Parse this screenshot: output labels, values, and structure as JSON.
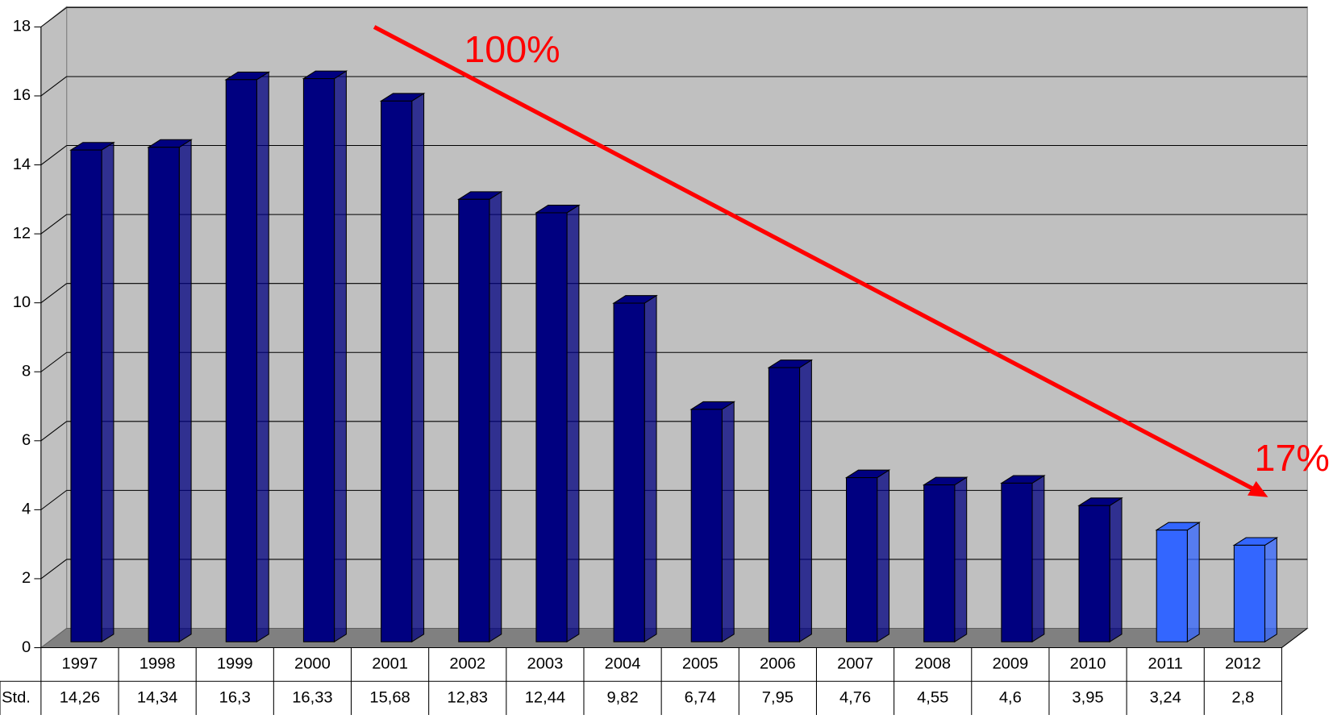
{
  "chart_data": {
    "type": "bar",
    "categories": [
      "1997",
      "1998",
      "1999",
      "2000",
      "2001",
      "2002",
      "2003",
      "2004",
      "2005",
      "2006",
      "2007",
      "2008",
      "2009",
      "2010",
      "2011",
      "2012"
    ],
    "series": [
      {
        "name": "Std.",
        "values": [
          14.26,
          14.34,
          16.3,
          16.33,
          15.68,
          12.83,
          12.44,
          9.82,
          6.74,
          7.95,
          4.76,
          4.55,
          4.6,
          3.95,
          3.24,
          2.8
        ],
        "value_labels": [
          "14,26",
          "14,34",
          "16,3",
          "16,33",
          "15,68",
          "12,83",
          "12,44",
          "9,82",
          "6,74",
          "7,95",
          "4,76",
          "4,55",
          "4,6",
          "3,95",
          "3,24",
          "2,8"
        ],
        "colors": [
          "#000080",
          "#000080",
          "#000080",
          "#000080",
          "#000080",
          "#000080",
          "#000080",
          "#000080",
          "#000080",
          "#000080",
          "#000080",
          "#000080",
          "#000080",
          "#000080",
          "#3366ff",
          "#3366ff"
        ]
      }
    ],
    "ylim": [
      0,
      18
    ],
    "yticks": [
      0,
      2,
      4,
      6,
      8,
      10,
      12,
      14,
      16,
      18
    ],
    "grid": true,
    "annotations": [
      "100%",
      "17%"
    ]
  }
}
